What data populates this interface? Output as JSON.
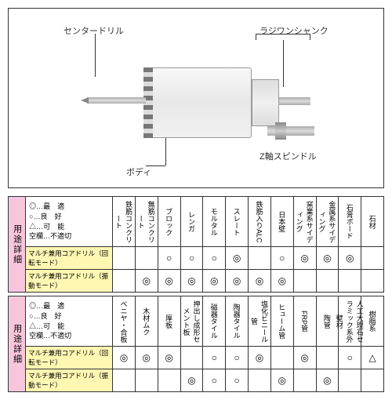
{
  "diagram": {
    "labels": {
      "center_drill": "センタードリル",
      "shank": "ラジワンシャンク",
      "body": "ボディ",
      "spindle": "Z軸スピンドル"
    }
  },
  "legend": {
    "best": "◎…最　適",
    "good": "○…良　好",
    "possible": "△…可　能",
    "blank": "空欄…不適切"
  },
  "side_label": "用途詳細",
  "tables": [
    {
      "columns": [
        "鉄筋コンクリート",
        "無筋コンクリート",
        "ブロック",
        "レンガ",
        "モルタル",
        "スレート",
        "鉄筋入りALC",
        "日本壁",
        "窯業系サイディング",
        "金属系サイディング",
        "石膏ボード",
        "石材"
      ],
      "rows": [
        {
          "label": "マルチ兼用コアドリル（回転モード）",
          "cells": [
            "",
            "",
            "○",
            "○",
            "○",
            "◎",
            "",
            "○",
            "◎",
            "◎",
            "◎",
            ""
          ]
        },
        {
          "label": "マルチ兼用コアドリル（振動モード）",
          "cells": [
            "",
            "◎",
            "◎",
            "◎",
            "◎",
            "◎",
            "◎",
            "◎",
            "",
            "",
            "",
            ""
          ]
        }
      ]
    },
    {
      "columns": [
        "ベニヤ・合板",
        "木材ムク",
        "厚板",
        "押出し成形セメント板",
        "磁器タイル",
        "陶器タイル",
        "塩化ビニール管",
        "ヒューム管",
        "FRP管",
        "陶管",
        "人工大理石セラミック系外壁材",
        "樹脂系"
      ],
      "rows": [
        {
          "label": "マルチ兼用コアドリル（回転モード）",
          "cells": [
            "◎",
            "◎",
            "◎",
            "",
            "○",
            "○",
            "◎",
            "",
            "◎",
            "",
            "○",
            "△"
          ]
        },
        {
          "label": "マルチ兼用コアドリル（振動モード）",
          "cells": [
            "",
            "",
            "",
            "◎",
            "○",
            "○",
            "",
            "◎",
            "",
            "◎",
            "",
            ""
          ]
        }
      ]
    }
  ]
}
